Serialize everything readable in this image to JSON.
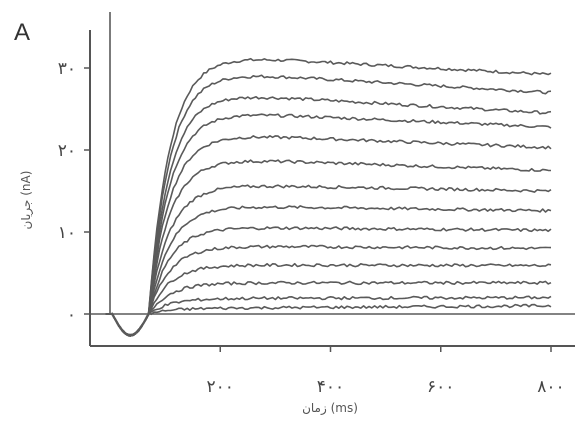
{
  "chart_data": {
    "type": "line",
    "panel_label": "A",
    "xlabel": "زمان (ms)",
    "ylabel": "جریان (nA)",
    "xlim": [
      -30,
      830
    ],
    "ylim": [
      -3,
      34
    ],
    "x_ticks": [
      {
        "value": 200,
        "label": "۲۰۰"
      },
      {
        "value": 400,
        "label": "۴۰۰"
      },
      {
        "value": 600,
        "label": "۶۰۰"
      },
      {
        "value": 800,
        "label": "۸۰۰"
      }
    ],
    "y_ticks": [
      {
        "value": 0,
        "label": "۰"
      },
      {
        "value": 10,
        "label": "۱۰"
      },
      {
        "value": 20,
        "label": "۲۰"
      },
      {
        "value": 30,
        "label": "۳۰"
      }
    ],
    "stimulus_start_ms": 60,
    "series": [
      {
        "peak": 31.6,
        "end": 29.2
      },
      {
        "peak": 29.6,
        "end": 27.0
      },
      {
        "peak": 27.0,
        "end": 24.5
      },
      {
        "peak": 24.7,
        "end": 22.8
      },
      {
        "peak": 22.0,
        "end": 20.3
      },
      {
        "peak": 19.0,
        "end": 17.5
      },
      {
        "peak": 15.8,
        "end": 15.0
      },
      {
        "peak": 13.2,
        "end": 12.6
      },
      {
        "peak": 10.6,
        "end": 10.2
      },
      {
        "peak": 8.3,
        "end": 8.0
      },
      {
        "peak": 6.0,
        "end": 5.9
      },
      {
        "peak": 3.8,
        "end": 3.8
      },
      {
        "peak": 1.9,
        "end": 2.0
      },
      {
        "peak": 0.7,
        "end": 1.0
      }
    ]
  }
}
